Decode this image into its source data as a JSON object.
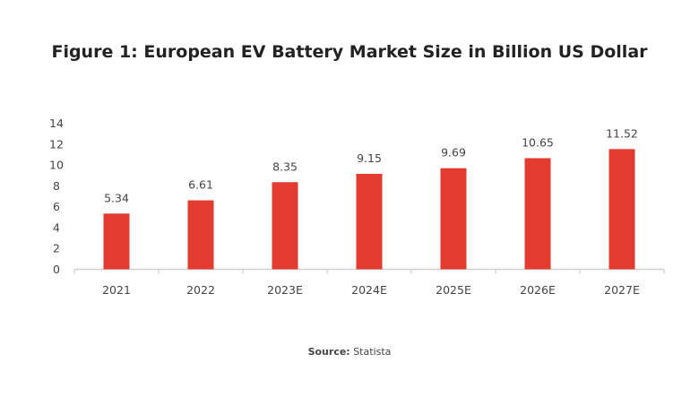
{
  "chart_data": {
    "type": "bar",
    "title": "Figure 1: European EV Battery Market Size in Billion US Dollar",
    "categories": [
      "2021",
      "2022",
      "2023E",
      "2024E",
      "2025E",
      "2026E",
      "2027E"
    ],
    "values": [
      5.34,
      6.61,
      8.35,
      9.15,
      9.69,
      10.65,
      11.52
    ],
    "data_labels": [
      "5.34",
      "6.61",
      "8.35",
      "9.15",
      "9.69",
      "10.65",
      "11.52"
    ],
    "xlabel": "",
    "ylabel": "",
    "ylim": [
      0,
      14
    ],
    "yticks": [
      "0",
      "2",
      "4",
      "6",
      "8",
      "10",
      "12",
      "14"
    ],
    "grid": false,
    "legend": "none",
    "bar_color": "#e33b2f"
  },
  "source": {
    "label": "Source:",
    "text": "Statista"
  }
}
